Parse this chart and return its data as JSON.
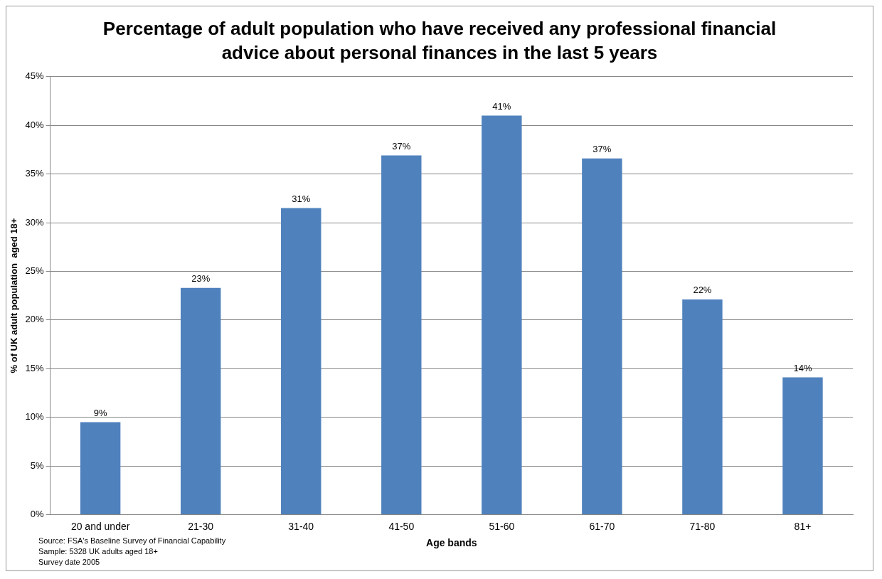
{
  "chart_data": {
    "type": "bar",
    "title": "Percentage of adult population who have received any professional financial advice about personal finances in the last 5 years",
    "xlabel": "Age bands",
    "ylabel": "% of UK adult population  aged 18+",
    "categories": [
      "20 and under",
      "21-30",
      "31-40",
      "41-50",
      "51-60",
      "61-70",
      "71-80",
      "81+"
    ],
    "values": [
      9.5,
      23.3,
      31.5,
      36.9,
      41.0,
      36.6,
      22.1,
      14.1
    ],
    "value_labels": [
      "9%",
      "23%",
      "31%",
      "37%",
      "41%",
      "37%",
      "22%",
      "14%"
    ],
    "color": "#4f81bd",
    "ylim": [
      0,
      45
    ],
    "yticks": [
      {
        "value": 0,
        "label": "0%"
      },
      {
        "value": 5,
        "label": "5%"
      },
      {
        "value": 10,
        "label": "10%"
      },
      {
        "value": 15,
        "label": "15%"
      },
      {
        "value": 20,
        "label": "20%"
      },
      {
        "value": 25,
        "label": "25%"
      },
      {
        "value": 30,
        "label": "30%"
      },
      {
        "value": 35,
        "label": "35%"
      },
      {
        "value": 40,
        "label": "40%"
      },
      {
        "value": 45,
        "label": "45%"
      }
    ],
    "grid": "y",
    "legend": false,
    "annotations": [
      "Source: FSA's Baseline Survey of Financial Capability",
      "Sample: 5328 UK adults aged 18+",
      "Survey date 2005"
    ]
  }
}
